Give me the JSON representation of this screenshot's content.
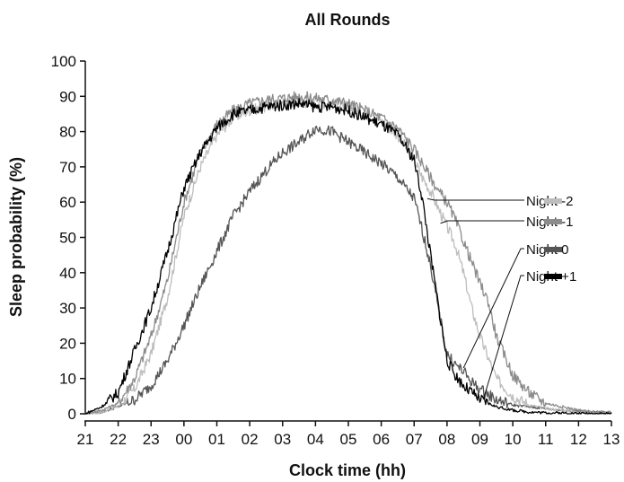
{
  "chart_data": {
    "type": "line",
    "title": "All Rounds",
    "xlabel": "Clock time (hh)",
    "ylabel": "Sleep probability (%)",
    "xlim": [
      21,
      37
    ],
    "ylim": [
      0,
      100
    ],
    "x_tick_values": [
      21,
      22,
      23,
      24,
      25,
      26,
      27,
      28,
      29,
      30,
      31,
      32,
      33,
      34,
      35,
      36,
      37
    ],
    "x_tick_labels": [
      "21",
      "22",
      "23",
      "00",
      "01",
      "02",
      "03",
      "04",
      "05",
      "06",
      "07",
      "08",
      "09",
      "10",
      "11",
      "12",
      "13"
    ],
    "y_ticks": [
      0,
      10,
      20,
      30,
      40,
      50,
      60,
      70,
      80,
      90,
      100
    ],
    "grid": false,
    "legend_position": "right, with leader lines to curves",
    "series": [
      {
        "name": "Night -2",
        "color": "#bdbdbd",
        "x": [
          21,
          21.5,
          22,
          22.5,
          23,
          23.5,
          24,
          24.5,
          25,
          25.5,
          26,
          26.5,
          27,
          27.5,
          28,
          28.5,
          29,
          29.5,
          30,
          30.5,
          31,
          31.25,
          31.5,
          31.75,
          32,
          32.25,
          32.5,
          32.75,
          33,
          33.5,
          34,
          34.5,
          35,
          35.5,
          36,
          36.5,
          37
        ],
        "y": [
          0,
          0.5,
          2,
          7,
          17,
          33,
          56,
          70,
          79,
          84,
          86,
          87,
          88,
          88.5,
          88,
          88,
          87,
          85,
          83,
          79,
          72,
          67,
          63,
          58,
          53,
          48,
          40,
          30,
          22,
          10,
          5,
          2.5,
          1.5,
          1,
          0.5,
          0.3,
          0.2
        ]
      },
      {
        "name": "Night -1",
        "color": "#8c8c8c",
        "x": [
          21,
          21.5,
          22,
          22.5,
          23,
          23.5,
          24,
          24.5,
          25,
          25.5,
          26,
          26.5,
          27,
          27.5,
          28,
          28.5,
          29,
          29.5,
          30,
          30.5,
          31,
          31.25,
          31.5,
          31.75,
          32,
          32.25,
          32.5,
          32.75,
          33,
          33.25,
          33.5,
          34,
          34.5,
          35,
          35.5,
          36,
          36.5,
          37
        ],
        "y": [
          0,
          1,
          3,
          10,
          22,
          38,
          60,
          74,
          82,
          86,
          88,
          89,
          89.5,
          90,
          89.5,
          89,
          88,
          86,
          84,
          81,
          75,
          71,
          67,
          63,
          60,
          55,
          49,
          43,
          37,
          32,
          22,
          11,
          6,
          3,
          2,
          1,
          0.5,
          0.3
        ]
      },
      {
        "name": "Night 0",
        "color": "#555555",
        "x": [
          21,
          21.5,
          22,
          22.5,
          23,
          23.5,
          24,
          24.5,
          25,
          25.5,
          26,
          26.5,
          27,
          27.5,
          28,
          28.5,
          29,
          29.5,
          30,
          30.5,
          31,
          31.25,
          31.5,
          31.75,
          32,
          32.25,
          32.5,
          32.75,
          33,
          33.5,
          34,
          34.5,
          35,
          35.5,
          36,
          36.5,
          37
        ],
        "y": [
          0,
          0.5,
          2,
          4,
          8,
          15,
          25,
          36,
          46,
          56,
          63,
          69,
          74,
          77,
          81,
          80,
          77,
          74,
          71,
          67,
          61,
          52,
          42,
          29,
          17,
          14,
          12,
          9,
          7,
          4,
          2.5,
          2,
          1.5,
          1,
          0.7,
          0.4,
          0.3
        ]
      },
      {
        "name": "Night +1",
        "color": "#000000",
        "x": [
          21,
          21.5,
          22,
          22.5,
          23,
          23.5,
          24,
          24.5,
          25,
          25.5,
          26,
          26.5,
          27,
          27.5,
          28,
          28.5,
          29,
          29.5,
          30,
          30.5,
          31,
          31.25,
          31.5,
          31.75,
          32,
          32.25,
          32.5,
          32.75,
          33,
          33.5,
          34,
          34.5,
          35,
          35.5,
          36,
          36.5,
          37
        ],
        "y": [
          0,
          2,
          6,
          18,
          30,
          46,
          64,
          74,
          81,
          85,
          86,
          87,
          87.5,
          88,
          87,
          87,
          86,
          84,
          82,
          79,
          72,
          61,
          45,
          30,
          15,
          11,
          8,
          6,
          4,
          2,
          1,
          0.5,
          0.3,
          0.2,
          0.1,
          0.1,
          0
        ]
      }
    ]
  }
}
